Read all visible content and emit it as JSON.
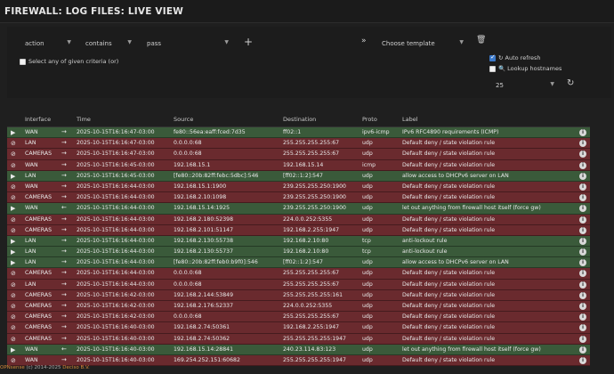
{
  "page": {
    "title": "FIREWALL: LOG FILES: LIVE VIEW"
  },
  "filter": {
    "field": "action",
    "operator": "contains",
    "value": "pass",
    "any_criteria_label": "Select any of given criteria (or)",
    "template_placeholder": "Choose template",
    "auto_refresh_label": "Auto refresh",
    "auto_refresh_checked": true,
    "lookup_hostnames_label": "Lookup hostnames",
    "lookup_hostnames_checked": false,
    "limit": "25"
  },
  "table": {
    "headers": [
      "Interface",
      "Time",
      "Source",
      "Destination",
      "Proto",
      "Label"
    ],
    "rows": [
      {
        "action": "pass",
        "iface": "WAN",
        "dir": "in",
        "time": "2025-10-15T16:16:47-03:00",
        "src": "fe80::56ea:eaff:fced:7d35",
        "dst": "ff02::1",
        "proto": "ipv6-icmp",
        "label": "IPv6 RFC4890 requirements (ICMP)"
      },
      {
        "action": "block",
        "iface": "LAN",
        "dir": "in",
        "time": "2025-10-15T16:16:47-03:00",
        "src": "0.0.0.0:68",
        "dst": "255.255.255.255:67",
        "proto": "udp",
        "label": "Default deny / state violation rule"
      },
      {
        "action": "block",
        "iface": "CAMERAS",
        "dir": "in",
        "time": "2025-10-15T16:16:47-03:00",
        "src": "0.0.0.0:68",
        "dst": "255.255.255.255:67",
        "proto": "udp",
        "label": "Default deny / state violation rule"
      },
      {
        "action": "block",
        "iface": "WAN",
        "dir": "in",
        "time": "2025-10-15T16:16:45-03:00",
        "src": "192.168.15.1",
        "dst": "192.168.15.14",
        "proto": "icmp",
        "label": "Default deny / state violation rule"
      },
      {
        "action": "pass",
        "iface": "LAN",
        "dir": "in",
        "time": "2025-10-15T16:16:45-03:00",
        "src": "[fe80::20b:82ff:febc:5dbc]:546",
        "dst": "[ff02::1:2]:547",
        "proto": "udp",
        "label": "allow access to DHCPv6 server on LAN"
      },
      {
        "action": "block",
        "iface": "WAN",
        "dir": "in",
        "time": "2025-10-15T16:16:44-03:00",
        "src": "192.168.15.1:1900",
        "dst": "239.255.255.250:1900",
        "proto": "udp",
        "label": "Default deny / state violation rule"
      },
      {
        "action": "block",
        "iface": "CAMERAS",
        "dir": "in",
        "time": "2025-10-15T16:16:44-03:00",
        "src": "192.168.2.10:1098",
        "dst": "239.255.255.250:1900",
        "proto": "udp",
        "label": "Default deny / state violation rule"
      },
      {
        "action": "pass",
        "iface": "WAN",
        "dir": "out",
        "time": "2025-10-15T16:16:44-03:00",
        "src": "192.168.15.14:1925",
        "dst": "239.255.255.250:1900",
        "proto": "udp",
        "label": "let out anything from firewall host itself (force gw)"
      },
      {
        "action": "block",
        "iface": "CAMERAS",
        "dir": "in",
        "time": "2025-10-15T16:16:44-03:00",
        "src": "192.168.2.180:52398",
        "dst": "224.0.0.252:5355",
        "proto": "udp",
        "label": "Default deny / state violation rule"
      },
      {
        "action": "block",
        "iface": "CAMERAS",
        "dir": "in",
        "time": "2025-10-15T16:16:44-03:00",
        "src": "192.168.2.101:51147",
        "dst": "192.168.2.255:1947",
        "proto": "udp",
        "label": "Default deny / state violation rule"
      },
      {
        "action": "pass",
        "iface": "LAN",
        "dir": "in",
        "time": "2025-10-15T16:16:44-03:00",
        "src": "192.168.2.130:55738",
        "dst": "192.168.2.10:80",
        "proto": "tcp",
        "label": "anti-lockout rule"
      },
      {
        "action": "pass",
        "iface": "LAN",
        "dir": "in",
        "time": "2025-10-15T16:16:44-03:00",
        "src": "192.168.2.130:55737",
        "dst": "192.168.2.10:80",
        "proto": "tcp",
        "label": "anti-lockout rule"
      },
      {
        "action": "pass",
        "iface": "LAN",
        "dir": "in",
        "time": "2025-10-15T16:16:44-03:00",
        "src": "[fe80::20b:82ff:feb0:b9f0]:546",
        "dst": "[ff02::1:2]:547",
        "proto": "udp",
        "label": "allow access to DHCPv6 server on LAN"
      },
      {
        "action": "block",
        "iface": "CAMERAS",
        "dir": "in",
        "time": "2025-10-15T16:16:44-03:00",
        "src": "0.0.0.0:68",
        "dst": "255.255.255.255:67",
        "proto": "udp",
        "label": "Default deny / state violation rule"
      },
      {
        "action": "block",
        "iface": "LAN",
        "dir": "in",
        "time": "2025-10-15T16:16:44-03:00",
        "src": "0.0.0.0:68",
        "dst": "255.255.255.255:67",
        "proto": "udp",
        "label": "Default deny / state violation rule"
      },
      {
        "action": "block",
        "iface": "CAMERAS",
        "dir": "in",
        "time": "2025-10-15T16:16:42-03:00",
        "src": "192.168.2.144:53849",
        "dst": "255.255.255.255:161",
        "proto": "udp",
        "label": "Default deny / state violation rule"
      },
      {
        "action": "block",
        "iface": "CAMERAS",
        "dir": "in",
        "time": "2025-10-15T16:16:42-03:00",
        "src": "192.168.2.176:52337",
        "dst": "224.0.0.252:5355",
        "proto": "udp",
        "label": "Default deny / state violation rule"
      },
      {
        "action": "block",
        "iface": "CAMERAS",
        "dir": "in",
        "time": "2025-10-15T16:16:42-03:00",
        "src": "0.0.0.0:68",
        "dst": "255.255.255.255:67",
        "proto": "udp",
        "label": "Default deny / state violation rule"
      },
      {
        "action": "block",
        "iface": "CAMERAS",
        "dir": "in",
        "time": "2025-10-15T16:16:40-03:00",
        "src": "192.168.2.74:50361",
        "dst": "192.168.2.255:1947",
        "proto": "udp",
        "label": "Default deny / state violation rule"
      },
      {
        "action": "block",
        "iface": "CAMERAS",
        "dir": "in",
        "time": "2025-10-15T16:16:40-03:00",
        "src": "192.168.2.74:50362",
        "dst": "255.255.255.255:1947",
        "proto": "udp",
        "label": "Default deny / state violation rule"
      },
      {
        "action": "pass",
        "iface": "WAN",
        "dir": "out",
        "time": "2025-10-15T16:16:40-03:00",
        "src": "192.168.15.14:28841",
        "dst": "240.23.114.83:123",
        "proto": "udp",
        "label": "let out anything from firewall host itself (force gw)"
      },
      {
        "action": "block",
        "iface": "WAN",
        "dir": "in",
        "time": "2025-10-15T16:16:40-03:00",
        "src": "169.254.252.151:60682",
        "dst": "255.255.255.255:1947",
        "proto": "udp",
        "label": "Default deny / state violation rule"
      }
    ]
  },
  "footer": {
    "brand": "OPNsense",
    "copyright": " (c) 2014-2025 ",
    "company": "Deciso B.V."
  },
  "colors": {
    "pass_row": "#3a5a3a",
    "block_row": "#6a2a2e",
    "brand": "#d98b3a"
  }
}
